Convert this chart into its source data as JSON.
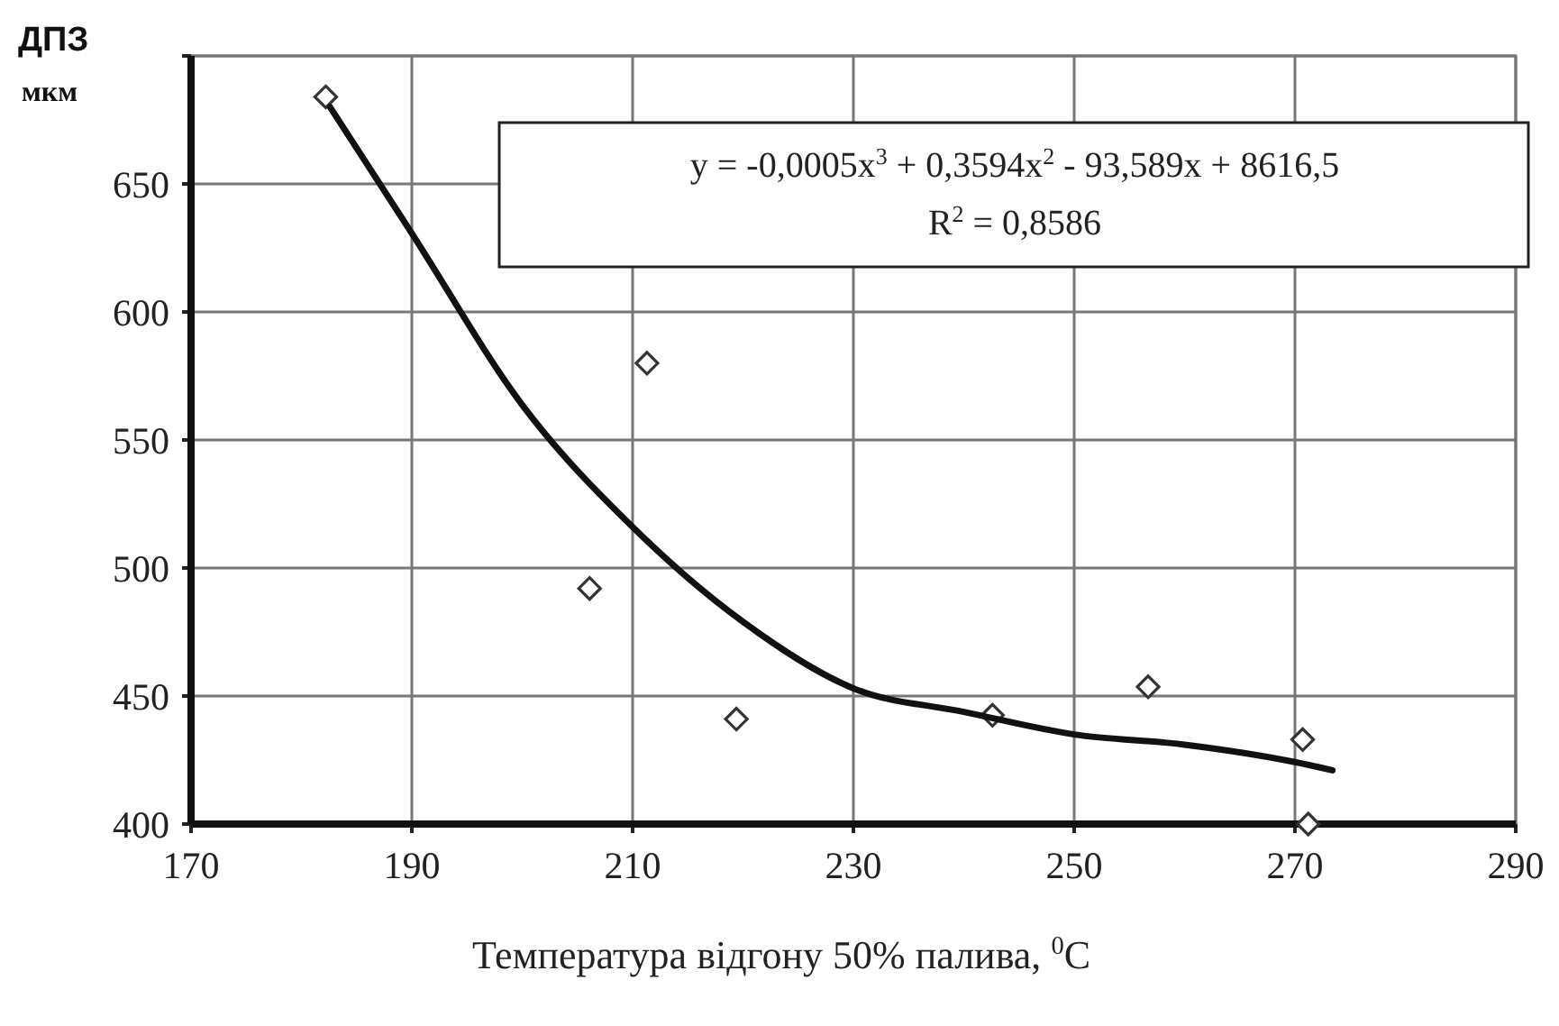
{
  "chart_data": {
    "type": "scatter",
    "xlabel": "Температура відгону 50% палива, $^{0}$C",
    "ylabel": "ДПЗ",
    "annotations": [
      "y = -0,0005x$^{3}$ + 0,3594x$^{2}$ - 93,589x + 8616,5",
      "R$^{2}$ = 0,8586",
      "мкм"
    ],
    "xlim": [
      170,
      290
    ],
    "xticks": [
      170,
      190,
      210,
      230,
      250,
      270,
      290
    ],
    "ylim": [
      400,
      700
    ],
    "yticks": [
      400,
      450,
      500,
      550,
      600,
      650,
      {
        "value": 700,
        "label": null
      }
    ],
    "grid": true,
    "series": [
      {
        "marker": "diamond",
        "color": "#333333",
        "x": [
          182.2,
          211.3,
          206.1,
          219.4,
          242.6,
          256.7,
          270.7,
          271.2
        ],
        "values": [
          684,
          580,
          492,
          441,
          442.5,
          453.6,
          433,
          400
        ]
      },
      {
        "type": "line",
        "marker": "none",
        "line_style": "solid",
        "color": "#111111",
        "x": [
          182.6,
          190,
          200,
          210,
          220,
          230,
          240,
          250,
          260,
          270,
          273.4
        ],
        "values": [
          680,
          630.7,
          563.7,
          516,
          479,
          453,
          443.8,
          435,
          431,
          424.2,
          421
        ]
      }
    ]
  }
}
